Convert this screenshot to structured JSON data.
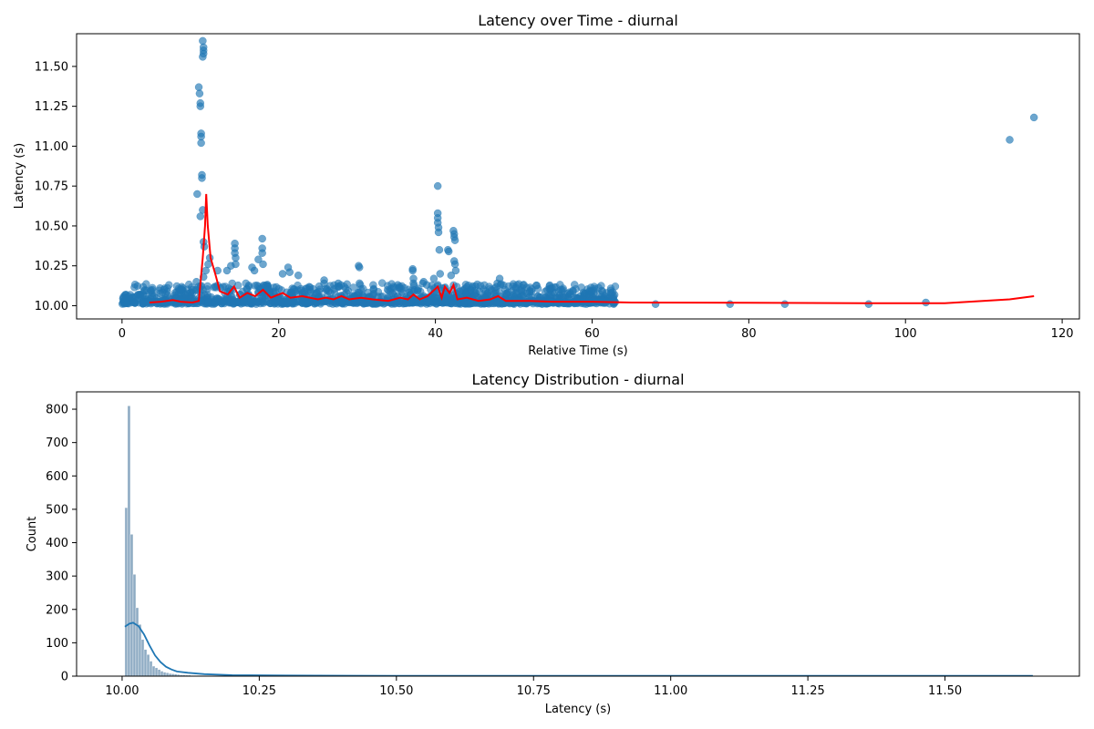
{
  "chart_data": [
    {
      "type": "scatter",
      "title": "Latency over Time - diurnal",
      "xlabel": "Relative Time (s)",
      "ylabel": "Latency (s)",
      "xlim": [
        -5.8,
        122.2
      ],
      "ylim": [
        9.917,
        11.705
      ],
      "xticks": [
        0,
        20,
        40,
        60,
        80,
        100,
        120
      ],
      "xtick_labels": [
        "0",
        "20",
        "40",
        "60",
        "80",
        "100",
        "120"
      ],
      "yticks": [
        10.0,
        10.25,
        10.5,
        10.75,
        11.0,
        11.25,
        11.5
      ],
      "ytick_labels": [
        "10.00",
        "10.25",
        "10.50",
        "10.75",
        "11.00",
        "11.25",
        "11.50"
      ],
      "grid": false,
      "colors": {
        "points": "#1f77b4",
        "rolling": "#ff0000"
      },
      "series": [
        {
          "kind": "scatter",
          "note": "dense cluster of samples 0-63 s near 10.0-10.1 s plus spikes",
          "points": [
            [
              10.3,
              11.66
            ],
            [
              10.4,
              11.62
            ],
            [
              10.4,
              11.6
            ],
            [
              10.4,
              11.58
            ],
            [
              10.3,
              11.56
            ],
            [
              9.8,
              11.37
            ],
            [
              9.9,
              11.33
            ],
            [
              10.0,
              11.27
            ],
            [
              10.0,
              11.25
            ],
            [
              10.1,
              11.08
            ],
            [
              10.1,
              11.06
            ],
            [
              10.1,
              11.02
            ],
            [
              10.2,
              10.82
            ],
            [
              10.2,
              10.8
            ],
            [
              9.6,
              10.7
            ],
            [
              10.3,
              10.6
            ],
            [
              10.0,
              10.56
            ],
            [
              10.4,
              10.4
            ],
            [
              10.5,
              10.37
            ],
            [
              11.2,
              10.3
            ],
            [
              11.0,
              10.26
            ],
            [
              10.7,
              10.22
            ],
            [
              10.4,
              10.18
            ],
            [
              9.5,
              10.15
            ],
            [
              9.0,
              10.1
            ],
            [
              12.2,
              10.22
            ],
            [
              13.9,
              10.25
            ],
            [
              14.4,
              10.39
            ],
            [
              14.4,
              10.36
            ],
            [
              14.4,
              10.33
            ],
            [
              14.5,
              10.3
            ],
            [
              14.5,
              10.26
            ],
            [
              13.4,
              10.22
            ],
            [
              16.6,
              10.24
            ],
            [
              16.9,
              10.22
            ],
            [
              17.4,
              10.29
            ],
            [
              17.9,
              10.42
            ],
            [
              17.9,
              10.36
            ],
            [
              17.9,
              10.33
            ],
            [
              18.0,
              10.26
            ],
            [
              20.5,
              10.2
            ],
            [
              21.2,
              10.24
            ],
            [
              21.4,
              10.21
            ],
            [
              22.5,
              10.19
            ],
            [
              25.8,
              10.16
            ],
            [
              25.8,
              10.14
            ],
            [
              27.6,
              10.14
            ],
            [
              27.7,
              10.12
            ],
            [
              30.2,
              10.25
            ],
            [
              30.3,
              10.24
            ],
            [
              32.1,
              10.1
            ],
            [
              35.2,
              10.13
            ],
            [
              35.3,
              10.11
            ],
            [
              37.1,
              10.23
            ],
            [
              37.1,
              10.22
            ],
            [
              37.2,
              10.17
            ],
            [
              37.2,
              10.14
            ],
            [
              38.5,
              10.15
            ],
            [
              38.9,
              10.13
            ],
            [
              39.8,
              10.17
            ],
            [
              40.3,
              10.75
            ],
            [
              40.3,
              10.58
            ],
            [
              40.3,
              10.55
            ],
            [
              40.3,
              10.52
            ],
            [
              40.4,
              10.49
            ],
            [
              40.4,
              10.46
            ],
            [
              40.5,
              10.35
            ],
            [
              40.6,
              10.2
            ],
            [
              41.6,
              10.35
            ],
            [
              41.7,
              10.34
            ],
            [
              42.3,
              10.47
            ],
            [
              42.4,
              10.45
            ],
            [
              42.4,
              10.43
            ],
            [
              42.5,
              10.41
            ],
            [
              42.4,
              10.28
            ],
            [
              42.5,
              10.26
            ],
            [
              42.6,
              10.22
            ],
            [
              42.0,
              10.19
            ],
            [
              43.1,
              10.09
            ],
            [
              44.5,
              10.1
            ],
            [
              45.6,
              10.09
            ],
            [
              46.7,
              10.08
            ],
            [
              47.9,
              10.14
            ],
            [
              48.2,
              10.17
            ],
            [
              48.3,
              10.13
            ],
            [
              49.1,
              10.07
            ],
            [
              51.2,
              10.06
            ],
            [
              52.0,
              10.05
            ],
            [
              54.0,
              10.05
            ],
            [
              55.5,
              10.05
            ],
            [
              57.0,
              10.05
            ],
            [
              58.5,
              10.06
            ],
            [
              59.6,
              10.07
            ],
            [
              61.2,
              10.04
            ],
            [
              61.8,
              10.03
            ],
            [
              62.8,
              10.02
            ],
            [
              68.1,
              10.01
            ],
            [
              77.6,
              10.01
            ],
            [
              84.6,
              10.01
            ],
            [
              95.3,
              10.01
            ],
            [
              102.6,
              10.02
            ],
            [
              113.3,
              11.04
            ],
            [
              116.4,
              11.18
            ]
          ],
          "cluster": {
            "x_range": [
              0,
              63
            ],
            "y_base": 10.02
          }
        },
        {
          "kind": "line",
          "points": [
            [
              3.5,
              10.02
            ],
            [
              5.0,
              10.025
            ],
            [
              6.5,
              10.035
            ],
            [
              7.5,
              10.025
            ],
            [
              9.0,
              10.02
            ],
            [
              9.8,
              10.03
            ],
            [
              10.3,
              10.3
            ],
            [
              10.6,
              10.5
            ],
            [
              10.75,
              10.7
            ],
            [
              10.95,
              10.5
            ],
            [
              11.3,
              10.3
            ],
            [
              11.9,
              10.2
            ],
            [
              12.5,
              10.09
            ],
            [
              13.5,
              10.07
            ],
            [
              14.3,
              10.12
            ],
            [
              15.0,
              10.05
            ],
            [
              16.0,
              10.08
            ],
            [
              17.0,
              10.06
            ],
            [
              18.0,
              10.1
            ],
            [
              19.0,
              10.05
            ],
            [
              20.5,
              10.08
            ],
            [
              21.5,
              10.05
            ],
            [
              23.0,
              10.06
            ],
            [
              25.0,
              10.04
            ],
            [
              26.0,
              10.05
            ],
            [
              27.0,
              10.04
            ],
            [
              28.0,
              10.06
            ],
            [
              29.0,
              10.04
            ],
            [
              30.5,
              10.05
            ],
            [
              32.0,
              10.04
            ],
            [
              34.0,
              10.03
            ],
            [
              35.5,
              10.05
            ],
            [
              36.5,
              10.04
            ],
            [
              37.2,
              10.07
            ],
            [
              38.0,
              10.04
            ],
            [
              39.0,
              10.06
            ],
            [
              40.3,
              10.12
            ],
            [
              40.8,
              10.05
            ],
            [
              41.2,
              10.12
            ],
            [
              41.8,
              10.08
            ],
            [
              42.3,
              10.13
            ],
            [
              42.8,
              10.04
            ],
            [
              44.0,
              10.05
            ],
            [
              45.5,
              10.03
            ],
            [
              47.0,
              10.04
            ],
            [
              48.0,
              10.06
            ],
            [
              49.0,
              10.03
            ],
            [
              52.0,
              10.03
            ],
            [
              55.0,
              10.025
            ],
            [
              60.0,
              10.025
            ],
            [
              65.0,
              10.02
            ],
            [
              80.0,
              10.018
            ],
            [
              95.0,
              10.016
            ],
            [
              105.0,
              10.016
            ],
            [
              113.3,
              10.04
            ],
            [
              116.4,
              10.06
            ]
          ]
        }
      ]
    },
    {
      "type": "bar",
      "title": "Latency Distribution - diurnal",
      "xlabel": "Latency (s)",
      "ylabel": "Count",
      "xlim": [
        9.917,
        11.745
      ],
      "ylim": [
        0,
        852
      ],
      "xticks": [
        10.0,
        10.25,
        10.5,
        10.75,
        11.0,
        11.25,
        11.5
      ],
      "xtick_labels": [
        "10.00",
        "10.25",
        "10.50",
        "10.75",
        "11.00",
        "11.25",
        "11.50"
      ],
      "yticks": [
        0,
        100,
        200,
        300,
        400,
        500,
        600,
        700,
        800
      ],
      "ytick_labels": [
        "0",
        "100",
        "200",
        "300",
        "400",
        "500",
        "600",
        "700",
        "800"
      ],
      "grid": false,
      "colors": {
        "bars": "#7a9cb8",
        "kde": "#1f77b4"
      },
      "bin_width": 0.005,
      "bin_start": 10.005,
      "bin_counts": [
        505,
        810,
        425,
        305,
        205,
        155,
        110,
        80,
        65,
        45,
        30,
        25,
        20,
        15,
        12,
        10,
        8,
        7,
        6,
        5,
        4,
        4,
        3,
        3,
        2,
        2,
        2,
        2,
        1,
        1
      ],
      "kde": [
        [
          10.005,
          148
        ],
        [
          10.013,
          157
        ],
        [
          10.02,
          160
        ],
        [
          10.03,
          150
        ],
        [
          10.04,
          125
        ],
        [
          10.05,
          92
        ],
        [
          10.06,
          62
        ],
        [
          10.07,
          42
        ],
        [
          10.08,
          28
        ],
        [
          10.09,
          20
        ],
        [
          10.1,
          14
        ],
        [
          10.12,
          10
        ],
        [
          10.15,
          6
        ],
        [
          10.2,
          3
        ],
        [
          10.3,
          2
        ],
        [
          10.5,
          1
        ],
        [
          11.0,
          1
        ],
        [
          11.66,
          1
        ]
      ]
    }
  ]
}
